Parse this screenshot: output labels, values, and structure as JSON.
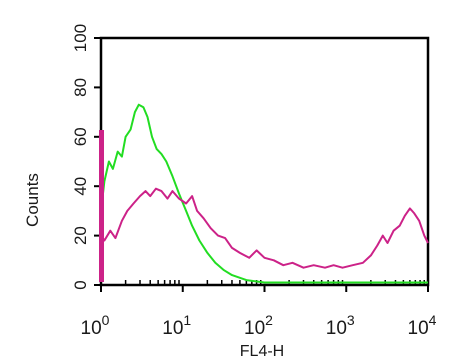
{
  "chart_data": {
    "type": "line",
    "title": "",
    "xlabel": "FL4-H",
    "ylabel": "Counts",
    "xscale": "log",
    "xlim": [
      1,
      10000
    ],
    "ylim": [
      0,
      100
    ],
    "grid": false,
    "legend": "none",
    "x_ticks": [
      {
        "value": 1,
        "base": "10",
        "exp": "0"
      },
      {
        "value": 10,
        "base": "10",
        "exp": "1"
      },
      {
        "value": 100,
        "base": "10",
        "exp": "2"
      },
      {
        "value": 1000,
        "base": "10",
        "exp": "3"
      },
      {
        "value": 10000,
        "base": "10",
        "exp": "4"
      }
    ],
    "y_ticks": [
      "0",
      "20",
      "40",
      "60",
      "80",
      "100"
    ],
    "series": [
      {
        "color": "#22dd22",
        "points": [
          [
            1.0,
            30
          ],
          [
            1.1,
            42
          ],
          [
            1.25,
            50
          ],
          [
            1.4,
            47
          ],
          [
            1.6,
            54
          ],
          [
            1.8,
            52
          ],
          [
            2.0,
            60
          ],
          [
            2.3,
            63
          ],
          [
            2.6,
            70
          ],
          [
            2.9,
            73
          ],
          [
            3.3,
            72
          ],
          [
            3.7,
            68
          ],
          [
            4.2,
            60
          ],
          [
            4.8,
            55
          ],
          [
            5.5,
            53
          ],
          [
            6.3,
            50
          ],
          [
            7.5,
            44
          ],
          [
            9,
            37
          ],
          [
            11,
            30
          ],
          [
            13,
            24
          ],
          [
            16,
            18
          ],
          [
            20,
            13
          ],
          [
            25,
            9
          ],
          [
            32,
            6
          ],
          [
            40,
            4
          ],
          [
            60,
            2
          ],
          [
            100,
            1
          ],
          [
            300,
            1
          ],
          [
            1000,
            1
          ],
          [
            3000,
            1
          ],
          [
            10000,
            1
          ]
        ]
      },
      {
        "color": "#cc2288",
        "points": [
          [
            1.0,
            20
          ],
          [
            1.1,
            18
          ],
          [
            1.3,
            22
          ],
          [
            1.5,
            19
          ],
          [
            1.8,
            26
          ],
          [
            2.1,
            30
          ],
          [
            2.5,
            33
          ],
          [
            3.0,
            36
          ],
          [
            3.5,
            38
          ],
          [
            4.0,
            36
          ],
          [
            4.7,
            39
          ],
          [
            5.5,
            38
          ],
          [
            6.5,
            35
          ],
          [
            7.5,
            38
          ],
          [
            9,
            35
          ],
          [
            11,
            33
          ],
          [
            13,
            36
          ],
          [
            15,
            30
          ],
          [
            18,
            27
          ],
          [
            22,
            23
          ],
          [
            27,
            20
          ],
          [
            33,
            19
          ],
          [
            40,
            15
          ],
          [
            50,
            13
          ],
          [
            65,
            11
          ],
          [
            80,
            14
          ],
          [
            100,
            11
          ],
          [
            130,
            10
          ],
          [
            170,
            8
          ],
          [
            220,
            9
          ],
          [
            300,
            7
          ],
          [
            400,
            8
          ],
          [
            550,
            7
          ],
          [
            700,
            8
          ],
          [
            900,
            7
          ],
          [
            1200,
            8
          ],
          [
            1600,
            9
          ],
          [
            2000,
            12
          ],
          [
            2400,
            16
          ],
          [
            2800,
            20
          ],
          [
            3200,
            17
          ],
          [
            3800,
            22
          ],
          [
            4500,
            24
          ],
          [
            5200,
            28
          ],
          [
            6000,
            31
          ],
          [
            6800,
            29
          ],
          [
            7800,
            26
          ],
          [
            9000,
            20
          ],
          [
            10000,
            17
          ]
        ]
      }
    ]
  }
}
